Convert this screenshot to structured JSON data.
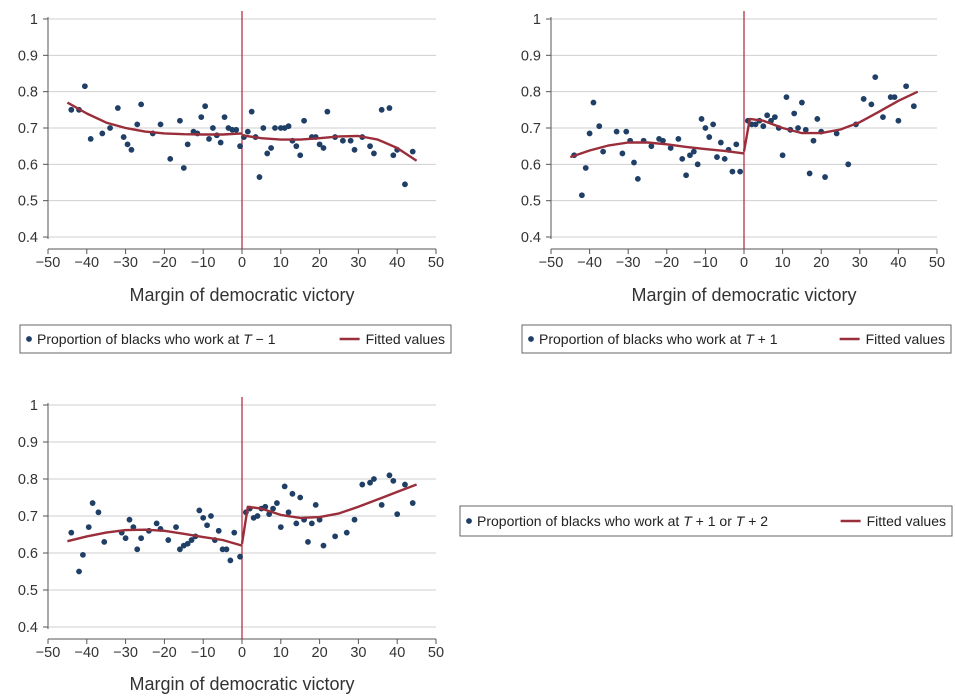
{
  "chart_data": [
    {
      "type": "scatter",
      "xlabel": "Margin of democratic victory",
      "xticks": [
        -50,
        -40,
        -30,
        -20,
        -10,
        0,
        10,
        20,
        30,
        40,
        50
      ],
      "yticks": [
        0.4,
        0.5,
        0.6,
        0.7,
        0.8,
        0.9,
        1
      ],
      "xlim": [
        -50,
        50
      ],
      "ylim": [
        0.4,
        1
      ],
      "cutoff": 0,
      "legend": [
        "Proportion of blacks who work at T − 1",
        "Fitted values"
      ],
      "legend_parts": {
        "prefix": "Proportion of blacks who work at ",
        "t1": "T",
        "m1": " − 1",
        "sep": "",
        "t2": "",
        "m2": "",
        "fit": "Fitted values"
      },
      "legend_position": "below",
      "points": [
        [
          -44,
          0.75
        ],
        [
          -42,
          0.75
        ],
        [
          -40.5,
          0.815
        ],
        [
          -39,
          0.67
        ],
        [
          -36,
          0.685
        ],
        [
          -34,
          0.7
        ],
        [
          -32,
          0.755
        ],
        [
          -30.5,
          0.675
        ],
        [
          -29.5,
          0.655
        ],
        [
          -28.5,
          0.64
        ],
        [
          -27,
          0.71
        ],
        [
          -26,
          0.765
        ],
        [
          -23,
          0.685
        ],
        [
          -21,
          0.71
        ],
        [
          -18.5,
          0.615
        ],
        [
          -16,
          0.72
        ],
        [
          -15,
          0.59
        ],
        [
          -14,
          0.655
        ],
        [
          -12.5,
          0.69
        ],
        [
          -11.5,
          0.685
        ],
        [
          -10.5,
          0.73
        ],
        [
          -9.5,
          0.76
        ],
        [
          -8.5,
          0.67
        ],
        [
          -7.5,
          0.7
        ],
        [
          -6.5,
          0.68
        ],
        [
          -5.5,
          0.66
        ],
        [
          -4.5,
          0.73
        ],
        [
          -3.5,
          0.7
        ],
        [
          -2.5,
          0.695
        ],
        [
          -1.5,
          0.695
        ],
        [
          -0.5,
          0.65
        ],
        [
          0.5,
          0.675
        ],
        [
          1.5,
          0.69
        ],
        [
          2.5,
          0.745
        ],
        [
          3.5,
          0.675
        ],
        [
          4.5,
          0.565
        ],
        [
          5.5,
          0.7
        ],
        [
          6.5,
          0.63
        ],
        [
          7.5,
          0.645
        ],
        [
          8.5,
          0.7
        ],
        [
          10,
          0.7
        ],
        [
          11,
          0.7
        ],
        [
          12,
          0.705
        ],
        [
          13,
          0.665
        ],
        [
          14,
          0.65
        ],
        [
          15,
          0.625
        ],
        [
          16,
          0.72
        ],
        [
          18,
          0.675
        ],
        [
          19,
          0.675
        ],
        [
          20,
          0.655
        ],
        [
          21,
          0.645
        ],
        [
          22,
          0.745
        ],
        [
          24,
          0.675
        ],
        [
          26,
          0.665
        ],
        [
          28,
          0.665
        ],
        [
          29,
          0.64
        ],
        [
          31,
          0.675
        ],
        [
          33,
          0.65
        ],
        [
          34,
          0.63
        ],
        [
          36,
          0.75
        ],
        [
          38,
          0.755
        ],
        [
          39,
          0.625
        ],
        [
          40,
          0.64
        ],
        [
          42,
          0.545
        ],
        [
          44,
          0.635
        ]
      ],
      "fit_left": [
        [
          -45,
          0.77
        ],
        [
          -40,
          0.74
        ],
        [
          -35,
          0.715
        ],
        [
          -30,
          0.7
        ],
        [
          -25,
          0.69
        ],
        [
          -20,
          0.685
        ],
        [
          -15,
          0.683
        ],
        [
          -10,
          0.682
        ],
        [
          -5,
          0.682
        ],
        [
          0,
          0.685
        ]
      ],
      "fit_right": [
        [
          0,
          0.68
        ],
        [
          5,
          0.672
        ],
        [
          10,
          0.668
        ],
        [
          15,
          0.668
        ],
        [
          20,
          0.672
        ],
        [
          25,
          0.677
        ],
        [
          30,
          0.678
        ],
        [
          35,
          0.668
        ],
        [
          40,
          0.645
        ],
        [
          45,
          0.61
        ]
      ]
    },
    {
      "type": "scatter",
      "xlabel": "Margin of democratic victory",
      "xticks": [
        -50,
        -40,
        -30,
        -20,
        -10,
        0,
        10,
        20,
        30,
        40,
        50
      ],
      "yticks": [
        0.4,
        0.5,
        0.6,
        0.7,
        0.8,
        0.9,
        1
      ],
      "xlim": [
        -50,
        50
      ],
      "ylim": [
        0.4,
        1
      ],
      "cutoff": 0,
      "legend": [
        "Proportion of blacks who work at T + 1",
        "Fitted values"
      ],
      "legend_parts": {
        "prefix": "Proportion of blacks who work at ",
        "t1": "T",
        "m1": " + 1",
        "sep": "",
        "t2": "",
        "m2": "",
        "fit": "Fitted values"
      },
      "legend_position": "below",
      "points": [
        [
          -44,
          0.625
        ],
        [
          -42,
          0.515
        ],
        [
          -41,
          0.59
        ],
        [
          -40,
          0.685
        ],
        [
          -39,
          0.77
        ],
        [
          -37.5,
          0.705
        ],
        [
          -36.5,
          0.635
        ],
        [
          -33,
          0.69
        ],
        [
          -31.5,
          0.63
        ],
        [
          -30.5,
          0.69
        ],
        [
          -29.5,
          0.665
        ],
        [
          -28.5,
          0.605
        ],
        [
          -27.5,
          0.56
        ],
        [
          -26,
          0.665
        ],
        [
          -24,
          0.65
        ],
        [
          -22,
          0.67
        ],
        [
          -21,
          0.665
        ],
        [
          -19,
          0.645
        ],
        [
          -17,
          0.67
        ],
        [
          -16,
          0.615
        ],
        [
          -15,
          0.57
        ],
        [
          -14,
          0.625
        ],
        [
          -13,
          0.635
        ],
        [
          -12,
          0.6
        ],
        [
          -11,
          0.725
        ],
        [
          -10,
          0.7
        ],
        [
          -9,
          0.675
        ],
        [
          -8,
          0.71
        ],
        [
          -7,
          0.62
        ],
        [
          -6,
          0.66
        ],
        [
          -5,
          0.615
        ],
        [
          -4,
          0.64
        ],
        [
          -3,
          0.58
        ],
        [
          -2,
          0.655
        ],
        [
          -1,
          0.58
        ],
        [
          1,
          0.72
        ],
        [
          2,
          0.71
        ],
        [
          3,
          0.71
        ],
        [
          4,
          0.72
        ],
        [
          5,
          0.705
        ],
        [
          6,
          0.735
        ],
        [
          7,
          0.72
        ],
        [
          8,
          0.73
        ],
        [
          9,
          0.7
        ],
        [
          10,
          0.625
        ],
        [
          11,
          0.785
        ],
        [
          12,
          0.695
        ],
        [
          13,
          0.74
        ],
        [
          14,
          0.7
        ],
        [
          15,
          0.77
        ],
        [
          16,
          0.695
        ],
        [
          17,
          0.575
        ],
        [
          18,
          0.665
        ],
        [
          19,
          0.725
        ],
        [
          20,
          0.69
        ],
        [
          21,
          0.565
        ],
        [
          24,
          0.685
        ],
        [
          27,
          0.6
        ],
        [
          29,
          0.71
        ],
        [
          31,
          0.78
        ],
        [
          33,
          0.765
        ],
        [
          34,
          0.84
        ],
        [
          36,
          0.73
        ],
        [
          38,
          0.785
        ],
        [
          39,
          0.785
        ],
        [
          40,
          0.72
        ],
        [
          42,
          0.815
        ],
        [
          44,
          0.76
        ]
      ],
      "fit_left": [
        [
          -45,
          0.62
        ],
        [
          -40,
          0.638
        ],
        [
          -35,
          0.652
        ],
        [
          -30,
          0.66
        ],
        [
          -25,
          0.66
        ],
        [
          -20,
          0.655
        ],
        [
          -15,
          0.648
        ],
        [
          -10,
          0.642
        ],
        [
          -5,
          0.637
        ],
        [
          0,
          0.63
        ]
      ],
      "fit_right": [
        [
          0,
          0.635
        ],
        [
          1.5,
          0.725
        ],
        [
          5,
          0.72
        ],
        [
          10,
          0.7
        ],
        [
          15,
          0.686
        ],
        [
          20,
          0.686
        ],
        [
          25,
          0.696
        ],
        [
          30,
          0.716
        ],
        [
          35,
          0.745
        ],
        [
          40,
          0.775
        ],
        [
          45,
          0.8
        ]
      ]
    },
    {
      "type": "scatter",
      "xlabel": "Margin of democratic victory",
      "xticks": [
        -50,
        -40,
        -30,
        -20,
        -10,
        0,
        10,
        20,
        30,
        40,
        50
      ],
      "yticks": [
        0.4,
        0.5,
        0.6,
        0.7,
        0.8,
        0.9,
        1
      ],
      "xlim": [
        -50,
        50
      ],
      "ylim": [
        0.4,
        1
      ],
      "cutoff": 0,
      "legend": [
        "Proportion of blacks who work at T + 1 or T + 2",
        "Fitted values"
      ],
      "legend_parts": {
        "prefix": "Proportion of blacks who work at ",
        "t1": "T",
        "m1": " + 1",
        "sep": " or ",
        "t2": "T",
        "m2": " + 2",
        "fit": "Fitted values"
      },
      "legend_position": "right",
      "points": [
        [
          -44,
          0.655
        ],
        [
          -42,
          0.55
        ],
        [
          -41,
          0.595
        ],
        [
          -39.5,
          0.67
        ],
        [
          -38.5,
          0.735
        ],
        [
          -37,
          0.71
        ],
        [
          -35.5,
          0.63
        ],
        [
          -31,
          0.655
        ],
        [
          -30,
          0.64
        ],
        [
          -29,
          0.69
        ],
        [
          -28,
          0.67
        ],
        [
          -27,
          0.61
        ],
        [
          -26,
          0.64
        ],
        [
          -24,
          0.66
        ],
        [
          -22,
          0.68
        ],
        [
          -21,
          0.665
        ],
        [
          -19,
          0.635
        ],
        [
          -17,
          0.67
        ],
        [
          -16,
          0.61
        ],
        [
          -15,
          0.62
        ],
        [
          -14,
          0.625
        ],
        [
          -13,
          0.635
        ],
        [
          -12,
          0.645
        ],
        [
          -11,
          0.715
        ],
        [
          -10,
          0.695
        ],
        [
          -9,
          0.675
        ],
        [
          -8,
          0.7
        ],
        [
          -7,
          0.635
        ],
        [
          -6,
          0.66
        ],
        [
          -5,
          0.61
        ],
        [
          -4,
          0.61
        ],
        [
          -3,
          0.58
        ],
        [
          -2,
          0.655
        ],
        [
          -0.5,
          0.59
        ],
        [
          1,
          0.71
        ],
        [
          2,
          0.72
        ],
        [
          3,
          0.695
        ],
        [
          4,
          0.7
        ],
        [
          5,
          0.72
        ],
        [
          6,
          0.725
        ],
        [
          7,
          0.705
        ],
        [
          8,
          0.72
        ],
        [
          9,
          0.735
        ],
        [
          10,
          0.67
        ],
        [
          11,
          0.78
        ],
        [
          12,
          0.71
        ],
        [
          13,
          0.76
        ],
        [
          14,
          0.68
        ],
        [
          15,
          0.75
        ],
        [
          16,
          0.69
        ],
        [
          17,
          0.63
        ],
        [
          18,
          0.68
        ],
        [
          19,
          0.73
        ],
        [
          20,
          0.69
        ],
        [
          21,
          0.62
        ],
        [
          24,
          0.645
        ],
        [
          27,
          0.655
        ],
        [
          29,
          0.69
        ],
        [
          31,
          0.785
        ],
        [
          33,
          0.79
        ],
        [
          34,
          0.8
        ],
        [
          36,
          0.73
        ],
        [
          38,
          0.81
        ],
        [
          39,
          0.795
        ],
        [
          40,
          0.705
        ],
        [
          42,
          0.785
        ],
        [
          44,
          0.735
        ]
      ],
      "fit_left": [
        [
          -45,
          0.632
        ],
        [
          -40,
          0.645
        ],
        [
          -35,
          0.655
        ],
        [
          -30,
          0.662
        ],
        [
          -25,
          0.663
        ],
        [
          -20,
          0.66
        ],
        [
          -15,
          0.652
        ],
        [
          -10,
          0.643
        ],
        [
          -5,
          0.635
        ],
        [
          0,
          0.62
        ]
      ],
      "fit_right": [
        [
          0,
          0.625
        ],
        [
          1.5,
          0.725
        ],
        [
          5,
          0.72
        ],
        [
          10,
          0.703
        ],
        [
          15,
          0.695
        ],
        [
          20,
          0.697
        ],
        [
          25,
          0.707
        ],
        [
          30,
          0.725
        ],
        [
          35,
          0.745
        ],
        [
          40,
          0.765
        ],
        [
          45,
          0.785
        ]
      ]
    }
  ]
}
